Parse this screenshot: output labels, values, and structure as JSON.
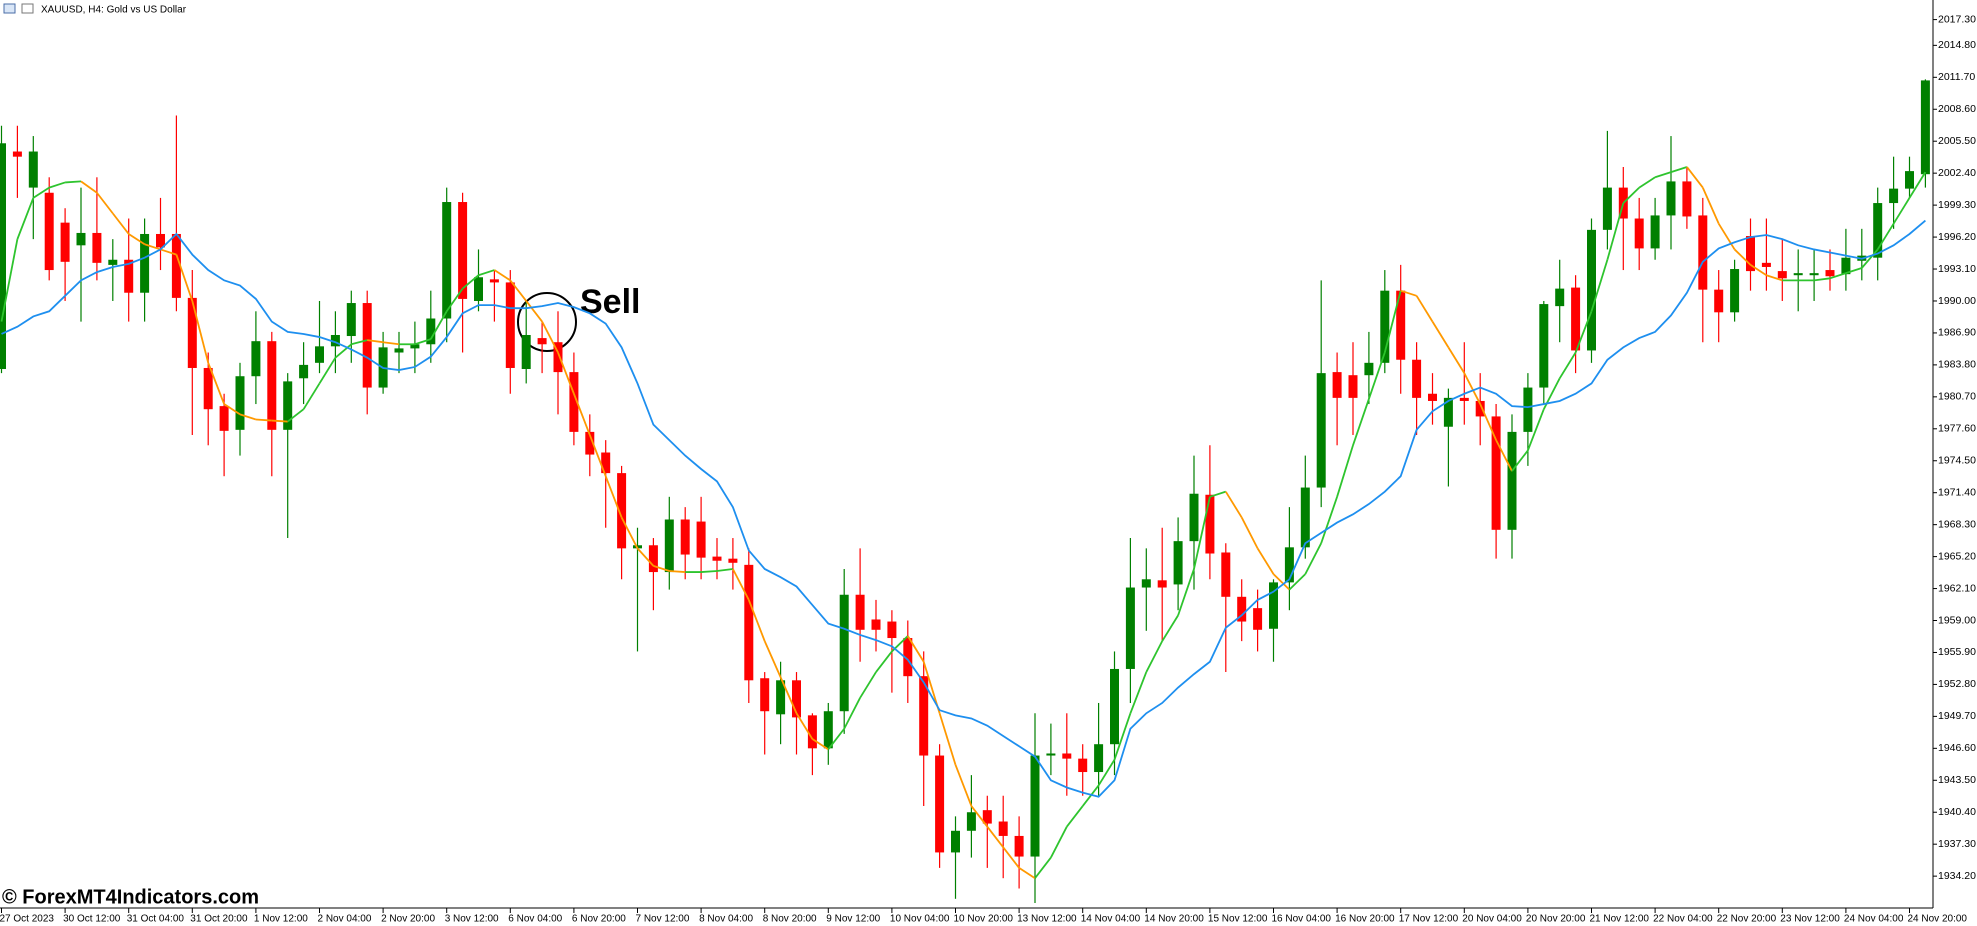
{
  "chart_data": {
    "type": "candlestick",
    "title": "XAUUSD, H4:  Gold vs US Dollar",
    "annotation": "Sell",
    "watermark": "© ForexMT4Indicators.com",
    "up_color": "#008000",
    "down_color": "#ff0000",
    "categories": [
      "27 Oct 2023",
      null,
      null,
      null,
      "30 Oct 12:00",
      null,
      null,
      null,
      "31 Oct 04:00",
      null,
      null,
      null,
      "31 Oct 20:00",
      null,
      null,
      null,
      "1 Nov 12:00",
      null,
      null,
      null,
      "2 Nov 04:00",
      null,
      null,
      null,
      "2 Nov 20:00",
      null,
      null,
      null,
      "3 Nov 12:00",
      null,
      null,
      null,
      "6 Nov 04:00",
      null,
      null,
      null,
      "6 Nov 20:00",
      null,
      null,
      null,
      "7 Nov 12:00",
      null,
      null,
      null,
      "8 Nov 04:00",
      null,
      null,
      null,
      "8 Nov 20:00",
      null,
      null,
      null,
      "9 Nov 12:00",
      null,
      null,
      null,
      "10 Nov 04:00",
      null,
      null,
      null,
      "10 Nov 20:00",
      null,
      null,
      null,
      "13 Nov 12:00",
      null,
      null,
      null,
      "14 Nov 04:00",
      null,
      null,
      null,
      "14 Nov 20:00",
      null,
      null,
      null,
      "15 Nov 12:00",
      null,
      null,
      null,
      "16 Nov 04:00",
      null,
      null,
      null,
      "16 Nov 20:00",
      null,
      null,
      null,
      "17 Nov 12:00",
      null,
      null,
      null,
      "20 Nov 04:00",
      null,
      null,
      null,
      "20 Nov 20:00",
      null,
      null,
      null,
      "21 Nov 12:00",
      null,
      null,
      null,
      "22 Nov 04:00",
      null,
      null,
      null,
      "22 Nov 20:00",
      null,
      null,
      null,
      "23 Nov 12:00",
      null,
      null,
      null,
      "24 Nov 04:00",
      null,
      null,
      null,
      "24 Nov 20:00",
      null
    ],
    "open": [
      1983.4,
      2004.5,
      2001,
      2000.5,
      1997.6,
      1995.4,
      1996.6,
      1993.5,
      1994,
      1990.8,
      1996.5,
      1996.5,
      1990.3,
      1983.5,
      1979.8,
      1977.5,
      1982.7,
      1986.1,
      1977.5,
      1982.5,
      1984,
      1985.6,
      1986.6,
      1989.8,
      1981.6,
      1985,
      1985.4,
      1985.8,
      1988.3,
      1999.6,
      1990,
      1992.1,
      1991.8,
      1983.4,
      1986.4,
      1986,
      1983.1,
      1977.3,
      1975.3,
      1973.3,
      1966,
      1966.3,
      1963.7,
      1968.8,
      1968.6,
      1965.2,
      1965,
      1964.4,
      1953.4,
      1949.9,
      1953.2,
      1949.8,
      1946.6,
      1950.2,
      1961.5,
      1959.1,
      1958.9,
      1957.3,
      1953.6,
      1945.9,
      1936.5,
      1938.6,
      1940.6,
      1939.5,
      1938.1,
      1936.1,
      1945.9,
      1946.1,
      1945.6,
      1944.3,
      1947,
      1954.3,
      1962.2,
      1962.9,
      1962.5,
      1966.7,
      1971.2,
      1965.6,
      1961.3,
      1960.2,
      1958.2,
      1962.7,
      1966.1,
      1971.9,
      1983.1,
      1982.8,
      1982.8,
      1984,
      1991,
      1984.3,
      1981,
      1977.8,
      1980.6,
      1980.3,
      1978.8,
      1967.8,
      1977.3,
      1981.6,
      1989.5,
      1991.3,
      1985.2,
      1996.9,
      2001,
      1998,
      1995.1,
      1998.3,
      2001.6,
      1998.3,
      1991.1,
      1988.9,
      1996.3,
      1993.7,
      1992.9,
      1992.5,
      1992.5,
      1993,
      1992.6,
      1993.9,
      1994.2,
      1999.5,
      2000.9,
      2002.3
    ],
    "high": [
      2007,
      2007,
      2006,
      2002,
      1999,
      2001,
      2002,
      1996,
      1998,
      1998,
      2000,
      2008,
      1993,
      1985,
      1981,
      1984,
      1989,
      1987,
      1983,
      1986,
      1990,
      1989,
      1991,
      1991,
      1987,
      1987,
      1988,
      1991,
      2001,
      2000.5,
      1995,
      1993,
      1993,
      1990,
      1988,
      1989,
      1985,
      1979,
      1976.5,
      1974,
      1968,
      1967,
      1971,
      1970,
      1971,
      1967,
      1967,
      1966,
      1954,
      1955,
      1954,
      1950,
      1951,
      1964,
      1966,
      1961,
      1960,
      1959,
      1956,
      1947,
      1940,
      1944,
      1942,
      1942,
      1940,
      1950,
      1949,
      1950,
      1947,
      1951,
      1956,
      1967,
      1966,
      1968,
      1969,
      1975,
      1976,
      1966.5,
      1963,
      1962,
      1963,
      1970,
      1975,
      1992,
      1985,
      1986,
      1987,
      1993,
      1993.5,
      1986,
      1983,
      1981.5,
      1986,
      1983,
      1980,
      1979,
      1983,
      1990,
      1994,
      1992.5,
      1998,
      2006.5,
      2003,
      2000,
      2000,
      2006,
      2003,
      2000,
      1993,
      1994,
      1998,
      1998,
      1996,
      1995,
      1995,
      1995,
      1997,
      1997,
      2001,
      2004,
      2004,
      2011.5
    ],
    "low": [
      1983,
      2000,
      1996,
      1992,
      1990,
      1988,
      1992,
      1990,
      1988,
      1988,
      1993,
      1989,
      1977,
      1976,
      1973,
      1975,
      1980,
      1973,
      1967,
      1980,
      1983,
      1983,
      1984,
      1979,
      1981,
      1983,
      1983,
      1984,
      1986,
      1985,
      1989,
      1988,
      1981,
      1982,
      1983,
      1979,
      1976,
      1973,
      1968,
      1963,
      1956,
      1960,
      1962,
      1963,
      1963,
      1963,
      1962,
      1951,
      1946,
      1947,
      1946,
      1944,
      1945,
      1948,
      1955,
      1956,
      1952,
      1951,
      1941,
      1935,
      1932,
      1936,
      1935,
      1934,
      1933,
      1931.6,
      1944,
      1942,
      1942,
      1942,
      1944,
      1951,
      1958,
      1957,
      1960,
      1962,
      1963,
      1954,
      1957,
      1956,
      1955,
      1960,
      1965,
      1970,
      1976,
      1977,
      1980,
      1983,
      1981,
      1977,
      1978,
      1972,
      1978,
      1976,
      1965,
      1965,
      1974,
      1980,
      1986,
      1983,
      1984,
      1995,
      1993,
      1993,
      1994,
      1995,
      1997,
      1986,
      1986,
      1988,
      1991,
      1991,
      1990,
      1989,
      1990,
      1991,
      1991,
      1992,
      1992,
      1997,
      2000,
      2001
    ],
    "close": [
      2005.3,
      2004,
      2004.5,
      1993,
      1993.8,
      1996.6,
      1993.7,
      1994,
      1990.8,
      1996.5,
      1995.2,
      1990.3,
      1983.5,
      1979.5,
      1977.4,
      1982.7,
      1986.1,
      1977.5,
      1982.2,
      1983.8,
      1985.6,
      1986.7,
      1989.8,
      1981.6,
      1985.5,
      1985.4,
      1985.8,
      1988.3,
      1999.6,
      1990.2,
      1992.3,
      1991.8,
      1983.5,
      1986.7,
      1985.8,
      1983.1,
      1977.3,
      1975.1,
      1973.3,
      1966,
      1966.3,
      1963.7,
      1968.8,
      1965.4,
      1965.1,
      1964.8,
      1964.6,
      1953.2,
      1950.2,
      1953.2,
      1949.6,
      1946.6,
      1950.2,
      1961.5,
      1958.1,
      1958.1,
      1957.3,
      1953.6,
      1945.9,
      1936.5,
      1938.6,
      1940.4,
      1939.3,
      1938.1,
      1936.1,
      1945.9,
      1946.1,
      1945.6,
      1944.3,
      1947,
      1954.3,
      1962.2,
      1963,
      1962.2,
      1966.7,
      1971.3,
      1965.5,
      1961.3,
      1958.9,
      1958.1,
      1962.7,
      1966.1,
      1971.9,
      1983,
      1980.6,
      1980.6,
      1984,
      1991,
      1984.3,
      1980.6,
      1980.3,
      1980.6,
      1980.3,
      1978.8,
      1967.8,
      1977.3,
      1981.6,
      1989.7,
      1991.2,
      1985.2,
      1996.9,
      2001,
      1998,
      1995.1,
      1998.3,
      2001.6,
      1998.2,
      1991.1,
      1988.9,
      1993.1,
      1992.9,
      1993.3,
      1992.2,
      1992.7,
      1992.7,
      1992.4,
      1994.2,
      1994.4,
      1999.5,
      2000.9,
      2002.6,
      2011.4
    ],
    "lines": [
      {
        "up_color": "#2ec42e",
        "down_color": "#ff9900",
        "values": [
          1988,
          1996,
          2000,
          2001,
          2001.5,
          2001.6,
          2000.5,
          1998.5,
          1996.5,
          1995.5,
          1995,
          1994.5,
          1990,
          1984,
          1980,
          1979,
          1978.5,
          1978.4,
          1978.3,
          1979.5,
          1982,
          1984.5,
          1985.8,
          1986.2,
          1986,
          1985.8,
          1985.8,
          1986.3,
          1989,
          1991.2,
          1992.5,
          1993,
          1992,
          1990,
          1988,
          1985,
          1981,
          1977,
          1973,
          1969,
          1966,
          1964.3,
          1963.8,
          1963.7,
          1963.7,
          1963.8,
          1964,
          1961,
          1957,
          1953.5,
          1950,
          1947.5,
          1946.5,
          1948.5,
          1951.5,
          1954,
          1956,
          1957.5,
          1955,
          1950,
          1945,
          1941,
          1939,
          1937,
          1935,
          1934,
          1936,
          1939,
          1941,
          1943,
          1945.5,
          1950,
          1954,
          1957,
          1959.5,
          1964,
          1971,
          1971.5,
          1969,
          1966,
          1963.5,
          1962,
          1963.5,
          1966.5,
          1971,
          1976,
          1980.5,
          1985,
          1991,
          1990.5,
          1988,
          1985.5,
          1983,
          1980,
          1976.5,
          1973.5,
          1975.5,
          1979.5,
          1982.5,
          1985,
          1989,
          1994,
          1999.5,
          2001,
          2002,
          2002.5,
          2003,
          2001,
          1997.5,
          1995,
          1993.5,
          1992.5,
          1992,
          1992,
          1992,
          1992.2,
          1992.7,
          1993.2,
          1995,
          1997.5,
          2000,
          2002.5
        ]
      },
      {
        "color": "#1e8fef",
        "values": [
          1986.8,
          1987.5,
          1988.5,
          1989,
          1990.5,
          1992,
          1992.8,
          1993.3,
          1993.6,
          1994.2,
          1995,
          1996.5,
          1994.5,
          1993,
          1992,
          1991.5,
          1990.2,
          1988,
          1987,
          1986.8,
          1986.5,
          1986,
          1985.3,
          1984.5,
          1983.5,
          1983.3,
          1983.6,
          1984.6,
          1986.5,
          1988.8,
          1989.6,
          1989.6,
          1989.3,
          1989.3,
          1989.5,
          1989.8,
          1989.4,
          1988.8,
          1987.8,
          1985.5,
          1982,
          1978,
          1976.5,
          1975,
          1973.7,
          1972.5,
          1970,
          1965.8,
          1964,
          1963.2,
          1962.3,
          1960.5,
          1958.7,
          1958.2,
          1957.6,
          1957.1,
          1956.5,
          1955.2,
          1953,
          1950.3,
          1949.8,
          1949.5,
          1948.8,
          1947.8,
          1946.8,
          1945.8,
          1943.5,
          1942.8,
          1942.3,
          1941.9,
          1943.5,
          1948.5,
          1950,
          1951,
          1952.5,
          1953.8,
          1955,
          1958.3,
          1959.5,
          1961,
          1961.8,
          1963,
          1966.5,
          1967.5,
          1968.5,
          1969.3,
          1970.3,
          1971.5,
          1973,
          1977.5,
          1979.3,
          1980.3,
          1981,
          1981.6,
          1981,
          1979.8,
          1979.7,
          1980,
          1980.3,
          1981,
          1982,
          1984.3,
          1985.5,
          1986.4,
          1987,
          1988.6,
          1990.8,
          1993.8,
          1995.1,
          1995.7,
          1996.2,
          1996.4,
          1996,
          1995.4,
          1995,
          1994.7,
          1994.4,
          1994.1,
          1994.6,
          1995.4,
          1996.5,
          1997.8
        ]
      }
    ],
    "ylim": [
      1931.4,
      2019.2
    ],
    "yticks": [
      {
        "value": 1934.2,
        "label": "1934.20"
      },
      {
        "value": 1937.3,
        "label": "1937.30"
      },
      {
        "value": 1940.4,
        "label": "1940.40"
      },
      {
        "value": 1943.5,
        "label": "1943.50"
      },
      {
        "value": 1946.6,
        "label": "1946.60"
      },
      {
        "value": 1949.7,
        "label": "1949.70"
      },
      {
        "value": 1952.8,
        "label": "1952.80"
      },
      {
        "value": 1955.9,
        "label": "1955.90"
      },
      {
        "value": 1959,
        "label": "1959.00"
      },
      {
        "value": 1962.1,
        "label": "1962.10"
      },
      {
        "value": 1965.2,
        "label": "1965.20"
      },
      {
        "value": 1968.3,
        "label": "1968.30"
      },
      {
        "value": 1971.4,
        "label": "1971.40"
      },
      {
        "value": 1974.5,
        "label": "1974.50"
      },
      {
        "value": 1977.6,
        "label": "1977.60"
      },
      {
        "value": 1980.7,
        "label": "1980.70"
      },
      {
        "value": 1983.8,
        "label": "1983.80"
      },
      {
        "value": 1986.9,
        "label": "1986.90"
      },
      {
        "value": 1990,
        "label": "1990.00"
      },
      {
        "value": 1993.1,
        "label": "1993.10"
      },
      {
        "value": 1996.2,
        "label": "1996.20"
      },
      {
        "value": 1999.3,
        "label": "1999.30"
      },
      {
        "value": 2002.4,
        "label": "2002.40"
      },
      {
        "value": 2005.5,
        "label": "2005.50"
      },
      {
        "value": 2008.6,
        "label": "2008.60"
      },
      {
        "value": 2011.7,
        "label": "2011.70"
      },
      {
        "value": 2014.8,
        "label": "2014.80"
      },
      {
        "value": 2017.3,
        "label": "2017.30"
      }
    ]
  }
}
